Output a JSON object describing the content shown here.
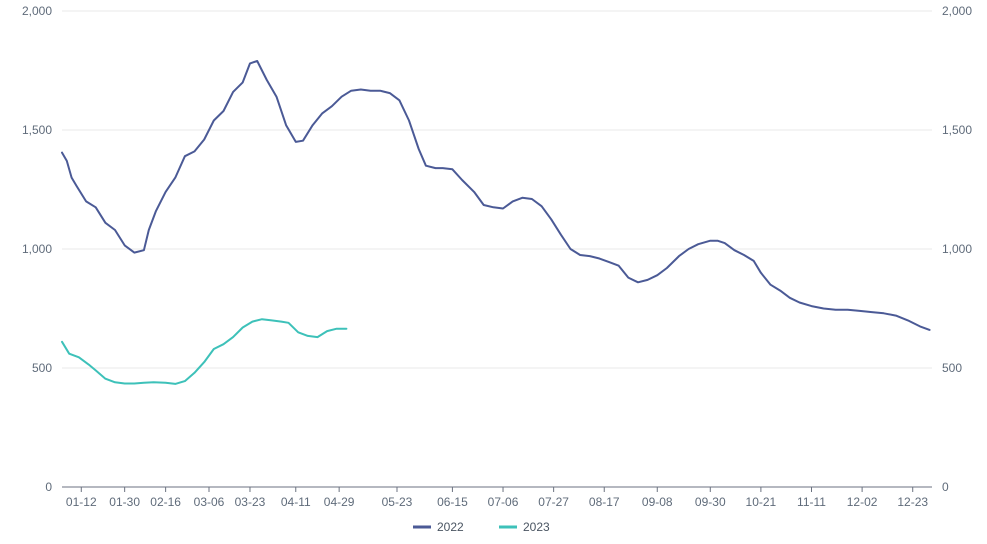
{
  "chart_data": {
    "type": "line",
    "title": "",
    "xlabel": "",
    "ylabel": "",
    "ylim": [
      0,
      2000
    ],
    "y_ticks": [
      0,
      500,
      1000,
      1500,
      2000
    ],
    "y_tick_labels": [
      "0",
      "500",
      "1,000",
      "1,500",
      "2,000"
    ],
    "x_tick_labels": [
      "01-12",
      "01-30",
      "02-16",
      "03-06",
      "03-23",
      "04-11",
      "04-29",
      "05-23",
      "06-15",
      "07-06",
      "07-27",
      "08-17",
      "09-08",
      "09-30",
      "10-21",
      "11-11",
      "12-02",
      "12-23"
    ],
    "x_range": [
      "01-04",
      "12-31"
    ],
    "grid": "horizontal",
    "legend_position": "bottom",
    "colors": {
      "2022": "#4b5a96",
      "2023": "#3dc1b9"
    },
    "series": [
      {
        "name": "2022",
        "x": [
          "01-04",
          "01-06",
          "01-08",
          "01-10",
          "01-14",
          "01-18",
          "01-22",
          "01-26",
          "01-30",
          "02-03",
          "02-07",
          "02-09",
          "02-12",
          "02-16",
          "02-20",
          "02-24",
          "02-28",
          "03-04",
          "03-08",
          "03-12",
          "03-16",
          "03-20",
          "03-23",
          "03-26",
          "03-30",
          "04-03",
          "04-07",
          "04-11",
          "04-14",
          "04-18",
          "04-22",
          "04-26",
          "04-30",
          "05-04",
          "05-08",
          "05-12",
          "05-16",
          "05-20",
          "05-24",
          "05-28",
          "06-01",
          "06-04",
          "06-08",
          "06-11",
          "06-15",
          "06-19",
          "06-24",
          "06-28",
          "07-02",
          "07-06",
          "07-10",
          "07-14",
          "07-18",
          "07-22",
          "07-26",
          "07-30",
          "08-03",
          "08-07",
          "08-11",
          "08-15",
          "08-19",
          "08-23",
          "08-27",
          "08-31",
          "09-04",
          "09-08",
          "09-12",
          "09-17",
          "09-21",
          "09-25",
          "09-30",
          "10-03",
          "10-06",
          "10-10",
          "10-14",
          "10-18",
          "10-21",
          "10-25",
          "10-29",
          "11-02",
          "11-06",
          "11-11",
          "11-16",
          "11-21",
          "11-26",
          "12-01",
          "12-06",
          "12-11",
          "12-16",
          "12-21",
          "12-26",
          "12-30"
        ],
        "values": [
          1405,
          1370,
          1300,
          1265,
          1200,
          1175,
          1110,
          1080,
          1015,
          985,
          995,
          1080,
          1160,
          1240,
          1300,
          1390,
          1410,
          1460,
          1540,
          1580,
          1660,
          1700,
          1780,
          1790,
          1710,
          1640,
          1520,
          1450,
          1455,
          1520,
          1570,
          1600,
          1640,
          1665,
          1670,
          1665,
          1665,
          1655,
          1625,
          1540,
          1420,
          1350,
          1340,
          1340,
          1335,
          1290,
          1240,
          1185,
          1175,
          1170,
          1200,
          1215,
          1210,
          1180,
          1125,
          1060,
          1000,
          975,
          970,
          960,
          945,
          930,
          880,
          860,
          870,
          890,
          920,
          970,
          1000,
          1020,
          1035,
          1035,
          1025,
          995,
          975,
          950,
          900,
          850,
          825,
          795,
          775,
          760,
          750,
          745,
          745,
          740,
          735,
          730,
          720,
          700,
          675,
          660
        ]
      },
      {
        "name": "2023",
        "x": [
          "01-04",
          "01-07",
          "01-11",
          "01-15",
          "01-18",
          "01-22",
          "01-26",
          "01-30",
          "02-03",
          "02-07",
          "02-11",
          "02-16",
          "02-20",
          "02-24",
          "02-28",
          "03-04",
          "03-08",
          "03-12",
          "03-16",
          "03-20",
          "03-24",
          "03-28",
          "04-01",
          "04-05",
          "04-08",
          "04-12",
          "04-16",
          "04-20",
          "04-24",
          "04-28",
          "05-02"
        ],
        "values": [
          610,
          560,
          545,
          515,
          490,
          455,
          440,
          435,
          435,
          438,
          440,
          438,
          433,
          445,
          480,
          525,
          580,
          600,
          630,
          670,
          695,
          705,
          700,
          695,
          690,
          650,
          635,
          630,
          655,
          665,
          665
        ]
      }
    ]
  }
}
